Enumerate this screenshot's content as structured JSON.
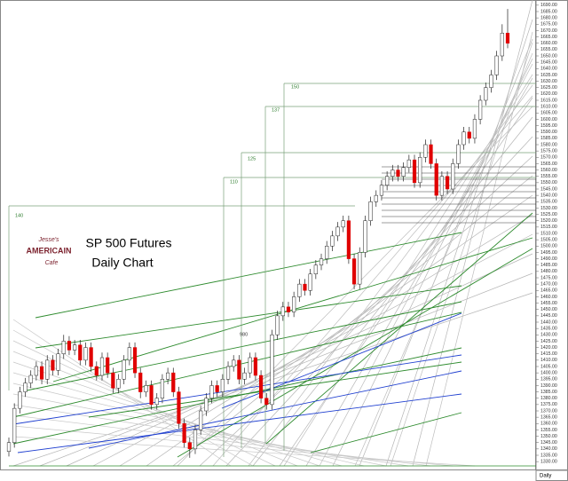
{
  "chart_data": {
    "type": "candlestick",
    "title": "SP 500 Futures",
    "subtitle": "Daily Chart",
    "logo": [
      "Jesse's",
      "AMERICAIN",
      "Cafe"
    ],
    "period": "Daily",
    "annotations": [
      "140",
      "110",
      "125",
      "137",
      "150",
      "980"
    ],
    "up_color": "#ffffff",
    "down_color": "#e00000",
    "ylim": [
      1328,
      1692
    ],
    "open": [
      1338,
      1345,
      1372,
      1385,
      1392,
      1398,
      1405,
      1395,
      1410,
      1402,
      1415,
      1425,
      1418,
      1422,
      1410,
      1420,
      1405,
      1398,
      1412,
      1400,
      1388,
      1395,
      1410,
      1420,
      1400,
      1385,
      1390,
      1375,
      1380,
      1395,
      1400,
      1385,
      1360,
      1345,
      1340,
      1355,
      1370,
      1380,
      1390,
      1385,
      1395,
      1405,
      1410,
      1395,
      1400,
      1412,
      1398,
      1380,
      1375,
      1430,
      1445,
      1452,
      1448,
      1460,
      1470,
      1465,
      1478,
      1485,
      1490,
      1500,
      1508,
      1515,
      1520,
      1490,
      1470,
      1495,
      1520,
      1535,
      1540,
      1548,
      1555,
      1560,
      1555,
      1562,
      1568,
      1550,
      1570,
      1580,
      1565,
      1540,
      1555,
      1545,
      1565,
      1580,
      1590,
      1585,
      1600,
      1615,
      1625,
      1635,
      1650,
      1668
    ],
    "high": [
      1349,
      1376,
      1389,
      1396,
      1402,
      1409,
      1409,
      1414,
      1414,
      1419,
      1430,
      1429,
      1426,
      1426,
      1424,
      1424,
      1409,
      1416,
      1416,
      1404,
      1399,
      1414,
      1424,
      1424,
      1404,
      1394,
      1394,
      1384,
      1399,
      1404,
      1404,
      1389,
      1364,
      1349,
      1359,
      1374,
      1384,
      1394,
      1394,
      1399,
      1409,
      1414,
      1414,
      1404,
      1416,
      1416,
      1402,
      1384,
      1434,
      1449,
      1456,
      1456,
      1464,
      1474,
      1474,
      1482,
      1489,
      1494,
      1504,
      1512,
      1519,
      1524,
      1524,
      1494,
      1499,
      1524,
      1539,
      1544,
      1552,
      1559,
      1564,
      1564,
      1566,
      1572,
      1572,
      1574,
      1584,
      1584,
      1569,
      1559,
      1559,
      1569,
      1584,
      1594,
      1594,
      1604,
      1619,
      1629,
      1639,
      1654,
      1675,
      1687
    ],
    "low": [
      1334,
      1341,
      1368,
      1381,
      1388,
      1394,
      1391,
      1391,
      1398,
      1398,
      1411,
      1414,
      1414,
      1406,
      1406,
      1401,
      1394,
      1394,
      1396,
      1384,
      1384,
      1391,
      1406,
      1396,
      1380,
      1381,
      1371,
      1371,
      1376,
      1391,
      1381,
      1356,
      1341,
      1333,
      1336,
      1351,
      1366,
      1376,
      1381,
      1381,
      1391,
      1401,
      1391,
      1391,
      1396,
      1394,
      1376,
      1371,
      1371,
      1426,
      1441,
      1444,
      1444,
      1456,
      1461,
      1461,
      1474,
      1481,
      1486,
      1496,
      1504,
      1511,
      1486,
      1466,
      1466,
      1491,
      1516,
      1531,
      1536,
      1544,
      1551,
      1551,
      1551,
      1558,
      1546,
      1546,
      1566,
      1561,
      1536,
      1536,
      1541,
      1541,
      1561,
      1576,
      1581,
      1581,
      1596,
      1611,
      1621,
      1631,
      1646,
      1656
    ],
    "close": [
      1345,
      1372,
      1385,
      1392,
      1398,
      1405,
      1395,
      1410,
      1402,
      1415,
      1425,
      1418,
      1422,
      1410,
      1420,
      1405,
      1398,
      1412,
      1400,
      1388,
      1395,
      1410,
      1420,
      1400,
      1385,
      1390,
      1375,
      1380,
      1395,
      1400,
      1385,
      1360,
      1345,
      1340,
      1355,
      1370,
      1380,
      1390,
      1385,
      1395,
      1405,
      1410,
      1395,
      1400,
      1412,
      1398,
      1380,
      1375,
      1430,
      1445,
      1452,
      1448,
      1460,
      1470,
      1465,
      1478,
      1485,
      1490,
      1500,
      1508,
      1515,
      1520,
      1490,
      1470,
      1495,
      1520,
      1535,
      1540,
      1548,
      1555,
      1560,
      1555,
      1562,
      1568,
      1550,
      1570,
      1580,
      1565,
      1540,
      1555,
      1545,
      1565,
      1580,
      1590,
      1585,
      1600,
      1615,
      1625,
      1635,
      1650,
      1668,
      1660
    ],
    "yticks": [
      {
        "value": 1330,
        "label": "1330.00"
      },
      {
        "value": 1335,
        "label": "1335.00"
      },
      {
        "value": 1340,
        "label": "1340.00"
      },
      {
        "value": 1345,
        "label": "1345.00"
      },
      {
        "value": 1350,
        "label": "1350.00"
      },
      {
        "value": 1355,
        "label": "1355.00"
      },
      {
        "value": 1360,
        "label": "1360.00"
      },
      {
        "value": 1365,
        "label": "1365.00"
      },
      {
        "value": 1370,
        "label": "1370.00"
      },
      {
        "value": 1375,
        "label": "1375.00"
      },
      {
        "value": 1380,
        "label": "1380.00"
      },
      {
        "value": 1385,
        "label": "1385.00"
      },
      {
        "value": 1390,
        "label": "1390.00"
      },
      {
        "value": 1395,
        "label": "1395.00"
      },
      {
        "value": 1400,
        "label": "1400.00"
      },
      {
        "value": 1405,
        "label": "1405.00"
      },
      {
        "value": 1410,
        "label": "1410.00"
      },
      {
        "value": 1415,
        "label": "1415.00"
      },
      {
        "value": 1420,
        "label": "1420.00"
      },
      {
        "value": 1425,
        "label": "1425.00"
      },
      {
        "value": 1430,
        "label": "1430.00"
      },
      {
        "value": 1435,
        "label": "1435.00"
      },
      {
        "value": 1440,
        "label": "1440.00"
      },
      {
        "value": 1445,
        "label": "1445.00"
      },
      {
        "value": 1450,
        "label": "1450.00"
      },
      {
        "value": 1455,
        "label": "1455.00"
      },
      {
        "value": 1460,
        "label": "1460.00"
      },
      {
        "value": 1465,
        "label": "1465.00"
      },
      {
        "value": 1470,
        "label": "1470.00"
      },
      {
        "value": 1475,
        "label": "1475.00"
      },
      {
        "value": 1480,
        "label": "1480.00"
      },
      {
        "value": 1485,
        "label": "1485.00"
      },
      {
        "value": 1490,
        "label": "1490.00"
      },
      {
        "value": 1495,
        "label": "1495.00"
      },
      {
        "value": 1500,
        "label": "1500.00"
      },
      {
        "value": 1505,
        "label": "1505.00"
      },
      {
        "value": 1510,
        "label": "1510.00"
      },
      {
        "value": 1515,
        "label": "1515.00"
      },
      {
        "value": 1520,
        "label": "1520.00"
      },
      {
        "value": 1525,
        "label": "1525.00"
      },
      {
        "value": 1530,
        "label": "1530.00"
      },
      {
        "value": 1535,
        "label": "1535.00"
      },
      {
        "value": 1540,
        "label": "1540.00"
      },
      {
        "value": 1545,
        "label": "1545.00"
      },
      {
        "value": 1550,
        "label": "1550.00"
      },
      {
        "value": 1555,
        "label": "1555.00"
      },
      {
        "value": 1560,
        "label": "1560.00"
      },
      {
        "value": 1565,
        "label": "1565.00"
      },
      {
        "value": 1570,
        "label": "1570.00"
      },
      {
        "value": 1575,
        "label": "1575.00"
      },
      {
        "value": 1580,
        "label": "1580.00"
      },
      {
        "value": 1585,
        "label": "1585.00"
      },
      {
        "value": 1590,
        "label": "1590.00"
      },
      {
        "value": 1595,
        "label": "1595.00"
      },
      {
        "value": 1600,
        "label": "1600.00"
      },
      {
        "value": 1605,
        "label": "1605.00"
      },
      {
        "value": 1610,
        "label": "1610.00"
      },
      {
        "value": 1615,
        "label": "1615.00"
      },
      {
        "value": 1620,
        "label": "1620.00"
      },
      {
        "value": 1625,
        "label": "1625.00"
      },
      {
        "value": 1630,
        "label": "1630.00"
      },
      {
        "value": 1635,
        "label": "1635.00"
      },
      {
        "value": 1640,
        "label": "1640.00"
      },
      {
        "value": 1645,
        "label": "1645.00"
      },
      {
        "value": 1650,
        "label": "1650.00"
      },
      {
        "value": 1655,
        "label": "1655.00"
      },
      {
        "value": 1660,
        "label": "1660.00"
      },
      {
        "value": 1665,
        "label": "1665.00"
      },
      {
        "value": 1670,
        "label": "1670.00"
      },
      {
        "value": 1675,
        "label": "1675.00"
      },
      {
        "value": 1680,
        "label": "1680.00"
      },
      {
        "value": 1685,
        "label": "1685.00"
      },
      {
        "value": 1690,
        "label": "1690.00"
      }
    ]
  }
}
